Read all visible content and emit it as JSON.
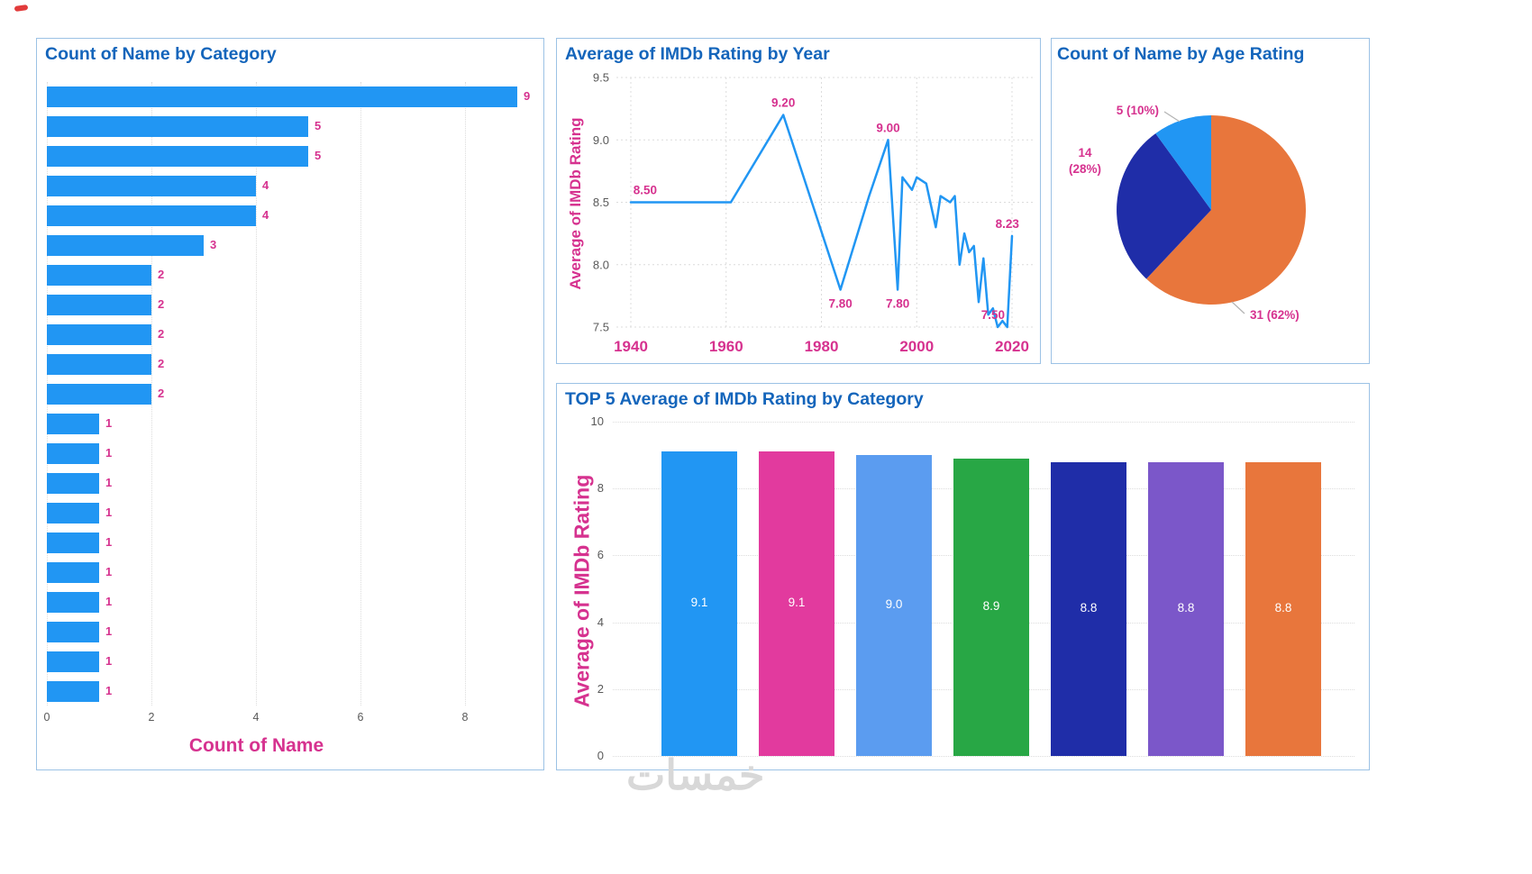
{
  "watermark": "خمسات",
  "colors": {
    "title_blue": "#1465BB",
    "label_pink": "#D6328F",
    "axis_gray": "#595959",
    "grid_gray": "#DCDCDC",
    "panel_border": "#9CC2E5",
    "watermark_gray": "#D8D8D8",
    "primary_bar_blue": "#2196F3"
  },
  "chart_data": [
    {
      "id": "category_bar",
      "type": "bar",
      "orientation": "horizontal",
      "title": "Count of Name by Category",
      "xlabel": "Count of Name",
      "ylabel": "",
      "x_ticks": [
        0,
        2,
        4,
        6,
        8
      ],
      "xlim": [
        0,
        9.5
      ],
      "values": [
        9,
        5,
        5,
        4,
        4,
        3,
        2,
        2,
        2,
        2,
        2,
        1,
        1,
        1,
        1,
        1,
        1,
        1,
        1,
        1,
        1
      ],
      "bar_color": "#2196F3",
      "grid": true
    },
    {
      "id": "rating_by_year",
      "type": "line",
      "title": "Average of IMDb Rating by Year",
      "xlabel": "",
      "ylabel": "Average of IMDb Rating",
      "x_ticks": [
        1940,
        1960,
        1980,
        2000,
        2020
      ],
      "y_ticks": [
        7.5,
        8,
        8.5,
        9,
        9.5
      ],
      "xlim": [
        1936,
        2023
      ],
      "ylim": [
        7.5,
        9.5
      ],
      "line_color": "#2196F3",
      "grid": true,
      "points": [
        [
          1940,
          8.5
        ],
        [
          1961,
          8.5
        ],
        [
          1972,
          9.2
        ],
        [
          1984,
          7.8
        ],
        [
          1990,
          8.55
        ],
        [
          1994,
          9.0
        ],
        [
          1996,
          7.8
        ],
        [
          1997,
          8.7
        ],
        [
          1999,
          8.6
        ],
        [
          2000,
          8.7
        ],
        [
          2002,
          8.65
        ],
        [
          2004,
          8.3
        ],
        [
          2005,
          8.55
        ],
        [
          2007,
          8.5
        ],
        [
          2008,
          8.55
        ],
        [
          2009,
          8.0
        ],
        [
          2010,
          8.25
        ],
        [
          2011,
          8.1
        ],
        [
          2012,
          8.15
        ],
        [
          2013,
          7.7
        ],
        [
          2014,
          8.05
        ],
        [
          2015,
          7.6
        ],
        [
          2016,
          7.65
        ],
        [
          2017,
          7.5
        ],
        [
          2018,
          7.55
        ],
        [
          2019,
          7.5
        ],
        [
          2020,
          8.23
        ]
      ],
      "annotations": [
        {
          "text": "8.50",
          "x": 1943,
          "y": 8.5,
          "pos": "above"
        },
        {
          "text": "9.20",
          "x": 1972,
          "y": 9.2,
          "pos": "above"
        },
        {
          "text": "7.80",
          "x": 1984,
          "y": 7.8,
          "pos": "below"
        },
        {
          "text": "9.00",
          "x": 1994,
          "y": 9.0,
          "pos": "above"
        },
        {
          "text": "7.80",
          "x": 1996,
          "y": 7.8,
          "pos": "below"
        },
        {
          "text": "7.50",
          "x": 2016,
          "y": 7.5,
          "pos": "above"
        },
        {
          "text": "8.23",
          "x": 2019,
          "y": 8.23,
          "pos": "above"
        }
      ]
    },
    {
      "id": "age_rating_pie",
      "type": "pie",
      "title": "Count of Name by Age Rating",
      "slices": [
        {
          "label": "31 (62%)",
          "value": 31,
          "pct": 62,
          "color": "#E8763C"
        },
        {
          "label": "14 (28%)",
          "value": 14,
          "pct": 28,
          "color": "#1F2DA8"
        },
        {
          "label": "5 (10%)",
          "value": 5,
          "pct": 10,
          "color": "#2196F3"
        }
      ],
      "start_angle_deg_from_top_clockwise": 0
    },
    {
      "id": "top5_rating_bar",
      "type": "bar",
      "orientation": "vertical",
      "title": "TOP 5 Average of IMDb Rating by Category",
      "xlabel": "",
      "ylabel": "Average of IMDb Rating",
      "y_ticks": [
        0,
        2,
        4,
        6,
        8,
        10
      ],
      "ylim": [
        0,
        10
      ],
      "values": [
        9.1,
        9.1,
        9.0,
        8.9,
        8.8,
        8.8,
        8.8
      ],
      "value_labels": [
        "9.1",
        "9.1",
        "9.0",
        "8.9",
        "8.8",
        "8.8",
        "8.8"
      ],
      "bar_colors": [
        "#2196F3",
        "#E23A9E",
        "#5B9CF0",
        "#28A745",
        "#1F2DA8",
        "#7B57C9",
        "#E8763C"
      ],
      "grid": true
    }
  ]
}
